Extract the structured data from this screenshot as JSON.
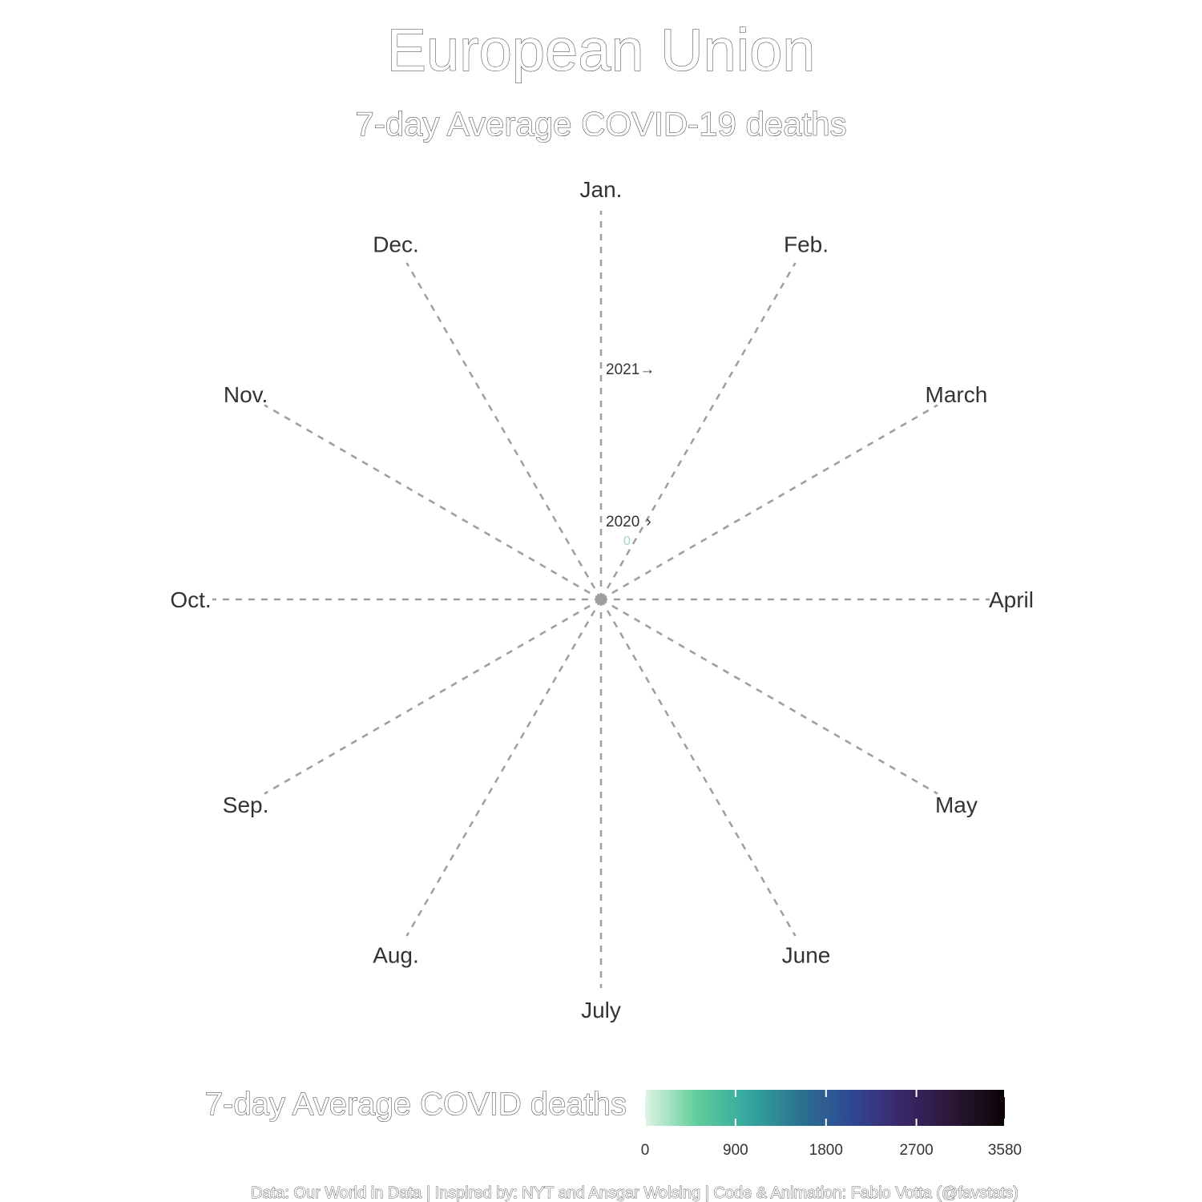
{
  "chart_data": {
    "type": "radial-spiral",
    "title": "European Union",
    "subtitle": "7-day Average COVID-19 deaths",
    "angle_axis": {
      "labels": [
        "Jan.",
        "Feb.",
        "March",
        "April",
        "May",
        "June",
        "July",
        "Aug.",
        "Sep.",
        "Oct.",
        "Nov.",
        "Dec."
      ]
    },
    "year_labels": [
      {
        "year": "2020",
        "arrow": "›",
        "day_of_year": 0
      },
      {
        "year": "2021",
        "arrow": "→",
        "day_of_year": 0
      }
    ],
    "series": [
      {
        "values": [
          0
        ]
      }
    ],
    "value_label": "0",
    "legend": {
      "title": "7-day Average COVID deaths",
      "min": 0,
      "max": 3580,
      "ticks": [
        0,
        900,
        1800,
        2700,
        3580
      ],
      "tick_labels": [
        "0",
        "900",
        "1800",
        "2700",
        "3580"
      ],
      "colors": [
        "#def5e5",
        "#60ce9a",
        "#34a79e",
        "#2b7290",
        "#304893",
        "#3a276a",
        "#2a1635",
        "#0b0405"
      ]
    },
    "caption": "Data: Our World in Data | Inspired by: NYT and Ansgar Wolsing | Code & Animation: Fabio Votta (@favstats)",
    "colors": {
      "spoke": "#9e9e9e",
      "month_text": "#333333",
      "center_dot": "#9e9e9e"
    }
  }
}
